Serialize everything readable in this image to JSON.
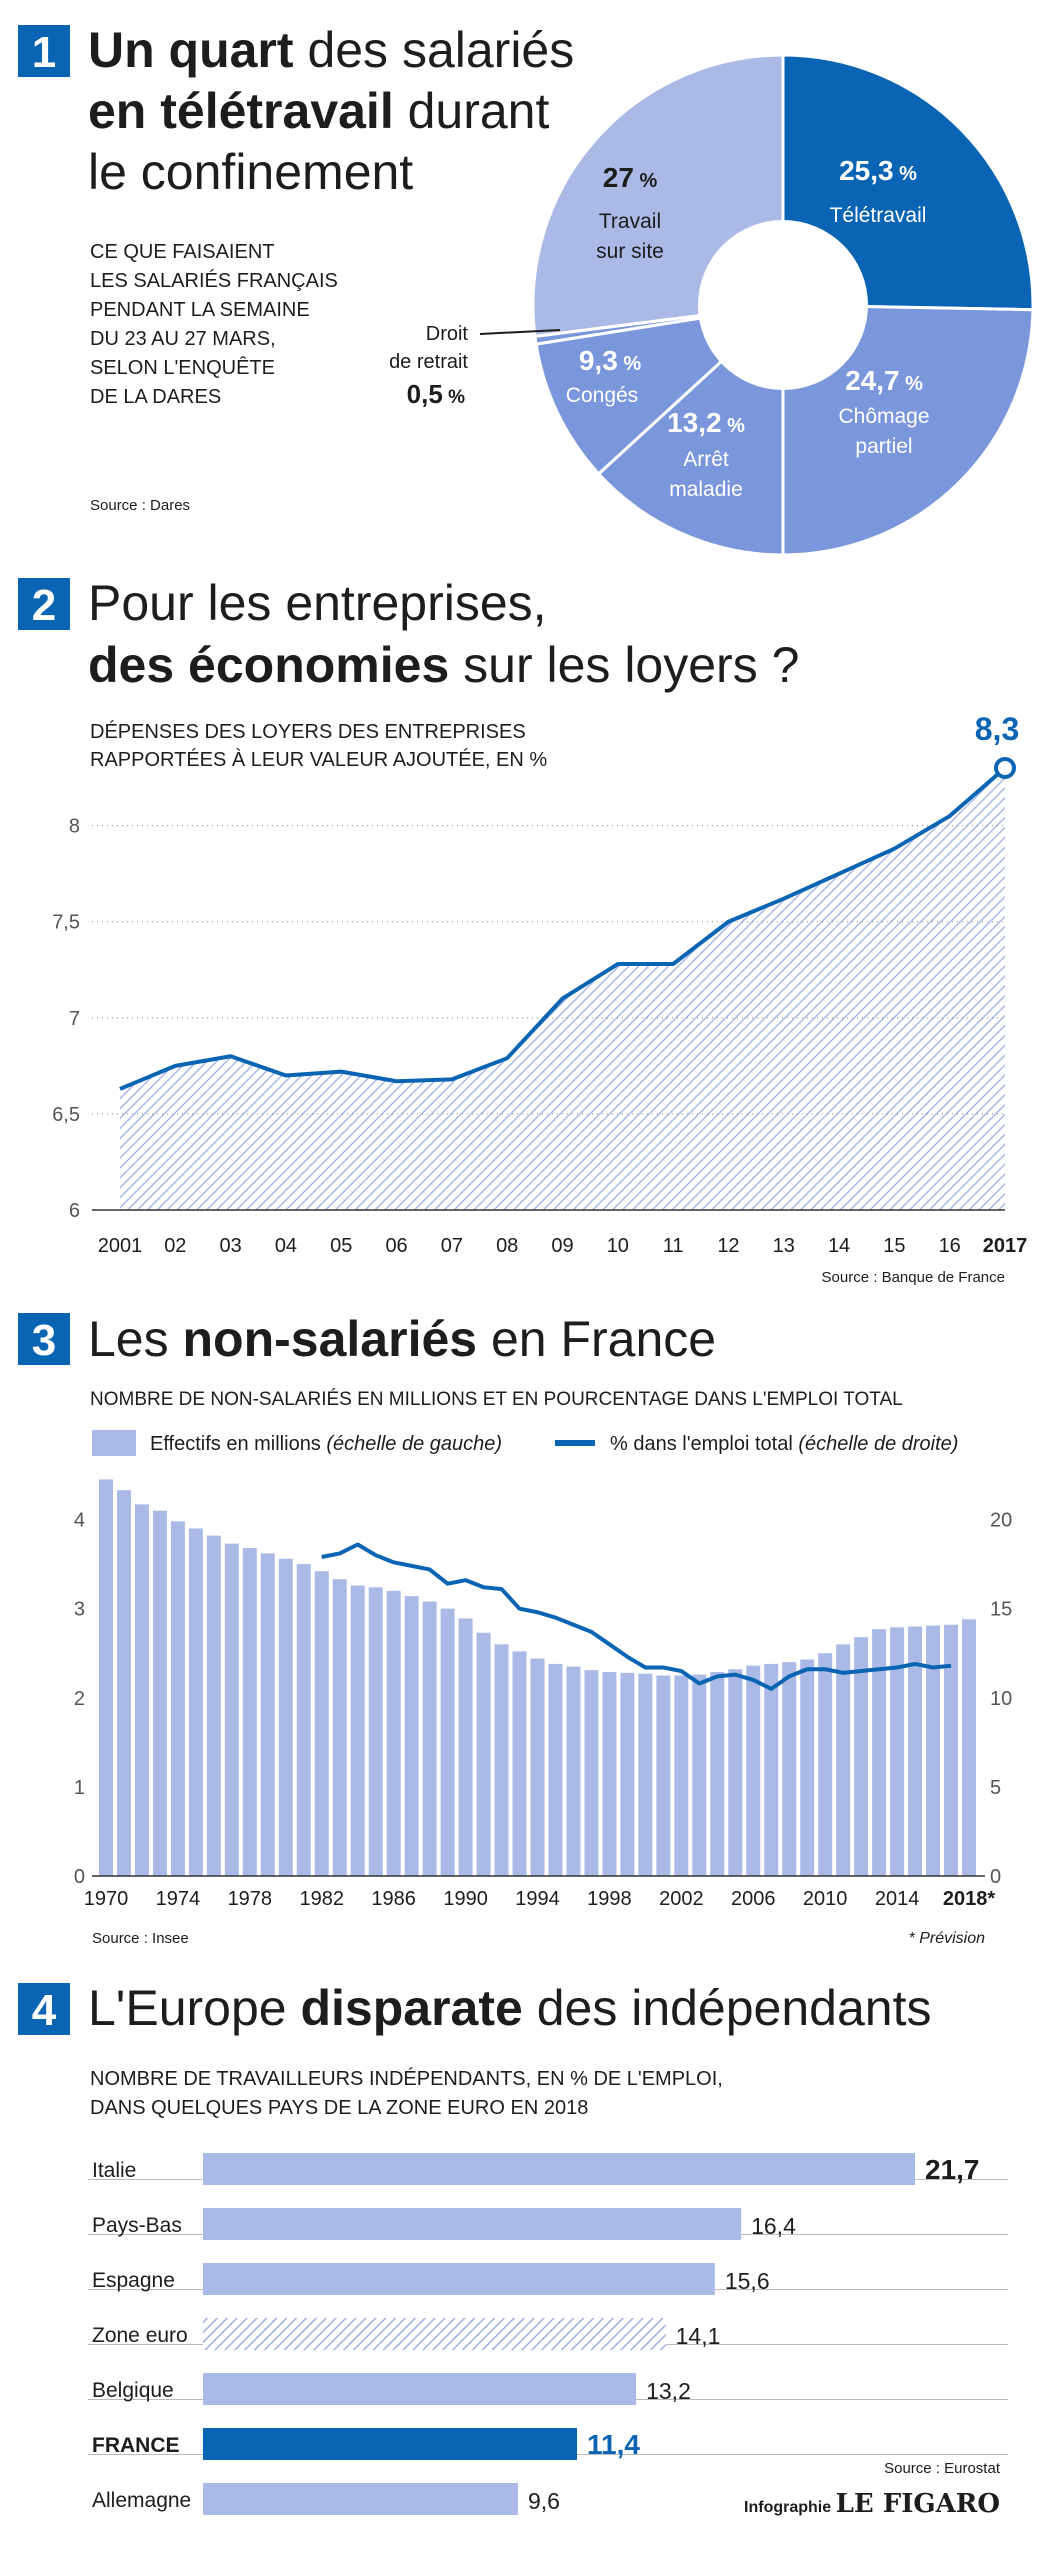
{
  "colors": {
    "dark_blue": "#0a64b4",
    "light_blue": "#aab9e6",
    "mid_blue": "#7b97dc",
    "pie_dark": "#0a64b4",
    "pie_mid": "#7b97dc",
    "pie_light": "#aab9e6",
    "text": "#1d1d1b",
    "axis": "#444444"
  },
  "sections": [
    {
      "number": "1",
      "title_bold_1": "Un quart",
      "title_rest_1": " des salariés",
      "title_bold_2": "en télétravail",
      "title_rest_2": " durant",
      "title_line_3": "le confinement",
      "subtitle": [
        "CE QUE FAISAIENT",
        "LES SALARIÉS FRANÇAIS",
        "PENDANT LA SEMAINE",
        "DU 23 AU 27 MARS,",
        "SELON L'ENQUÊTE",
        "DE LA DARES"
      ],
      "source": "Source : Dares"
    },
    {
      "number": "2",
      "title_line_1": "Pour les entreprises,",
      "title_bold_2": "des économies",
      "title_rest_2": " sur les loyers ?",
      "subtitle": [
        "DÉPENSES DES LOYERS DES ENTREPRISES",
        "RAPPORTÉES À LEUR VALEUR AJOUTÉE, EN %"
      ],
      "source": "Source : Banque de France"
    },
    {
      "number": "3",
      "title_rest_1": "Les ",
      "title_bold_1": "non-salariés",
      "title_rest_2": " en France",
      "subtitle": "NOMBRE DE NON-SALARIÉS EN MILLIONS ET EN POURCENTAGE DANS L'EMPLOI TOTAL",
      "legend_bar": "Effectifs en millions",
      "legend_bar_note": "(échelle de gauche)",
      "legend_line": "% dans l'emploi total",
      "legend_line_note": "(échelle de droite)",
      "source": "Source : Insee",
      "footnote": "* Prévision"
    },
    {
      "number": "4",
      "title_rest_1": "L'Europe ",
      "title_bold_1": "disparate",
      "title_rest_2": " des indépendants",
      "subtitle": [
        "NOMBRE DE TRAVAILLEURS INDÉPENDANTS, EN % DE L'EMPLOI,",
        "DANS QUELQUES PAYS DE LA ZONE EURO EN 2018"
      ],
      "source": "Source : Eurostat",
      "credit_prefix": "Infographie",
      "credit_brand": "LE FIGARO"
    }
  ],
  "chart_data": [
    {
      "type": "pie",
      "id": "pie",
      "slices": [
        {
          "label": "Télétravail",
          "value": 25.3,
          "value_text": "25,3",
          "color": "dark"
        },
        {
          "label": "Chômage partiel",
          "value": 24.7,
          "value_text": "24,7",
          "color": "mid"
        },
        {
          "label": "Arrêt maladie",
          "value": 13.2,
          "value_text": "13,2",
          "color": "mid"
        },
        {
          "label": "Congés",
          "value": 9.3,
          "value_text": "9,3",
          "color": "mid"
        },
        {
          "label": "Droit de retrait",
          "value": 0.5,
          "value_text": "0,5",
          "color": "mid"
        },
        {
          "label": "Travail sur site",
          "value": 27,
          "value_text": "27",
          "color": "light"
        }
      ]
    },
    {
      "type": "area",
      "id": "loyers",
      "x": [
        2001,
        2002,
        2003,
        2004,
        2005,
        2006,
        2007,
        2008,
        2009,
        2010,
        2011,
        2012,
        2013,
        2014,
        2015,
        2016,
        2017
      ],
      "x_labels": [
        "2001",
        "02",
        "03",
        "04",
        "05",
        "06",
        "07",
        "08",
        "09",
        "10",
        "11",
        "12",
        "13",
        "14",
        "15",
        "16",
        "2017"
      ],
      "values": [
        6.63,
        6.75,
        6.8,
        6.7,
        6.72,
        6.67,
        6.68,
        6.79,
        7.1,
        7.28,
        7.28,
        7.5,
        7.62,
        7.75,
        7.88,
        8.05,
        8.3
      ],
      "last_label": "8,3",
      "ylim": [
        6,
        8.3
      ],
      "yticks": [
        6,
        6.5,
        7,
        7.5,
        8
      ],
      "ytick_labels": [
        "6",
        "6,5",
        "7",
        "7,5",
        "8"
      ]
    },
    {
      "type": "bar",
      "id": "nonsal",
      "x_start": 1970,
      "bars": [
        4.45,
        4.33,
        4.17,
        4.1,
        3.98,
        3.9,
        3.82,
        3.73,
        3.68,
        3.62,
        3.56,
        3.5,
        3.42,
        3.33,
        3.26,
        3.24,
        3.2,
        3.14,
        3.08,
        3.0,
        2.89,
        2.73,
        2.6,
        2.52,
        2.44,
        2.38,
        2.35,
        2.31,
        2.29,
        2.28,
        2.27,
        2.25,
        2.25,
        2.26,
        2.29,
        2.32,
        2.36,
        2.38,
        2.4,
        2.43,
        2.5,
        2.6,
        2.68,
        2.77,
        2.79,
        2.8,
        2.81,
        2.82,
        2.88
      ],
      "line_start": 1982,
      "line": [
        17.9,
        18.1,
        18.6,
        18.0,
        17.6,
        17.4,
        17.2,
        16.4,
        16.6,
        16.2,
        16.1,
        15.0,
        14.8,
        14.5,
        14.1,
        13.7,
        13.0,
        12.3,
        11.7,
        11.7,
        11.5,
        10.8,
        11.2,
        11.3,
        11.0,
        10.5,
        11.2,
        11.6,
        11.6,
        11.4,
        11.5,
        11.6,
        11.7,
        11.9,
        11.7,
        11.8
      ],
      "x_labels": [
        "1970",
        "1974",
        "1978",
        "1982",
        "1986",
        "1990",
        "1994",
        "1998",
        "2002",
        "2006",
        "2010",
        "2014",
        "2018*"
      ],
      "ylim_left": [
        0,
        4.5
      ],
      "yticks_left": [
        0,
        1,
        2,
        3,
        4
      ],
      "ylim_right": [
        0,
        22.5
      ],
      "yticks_right": [
        0,
        5,
        10,
        15,
        20
      ]
    },
    {
      "type": "bar",
      "id": "europe",
      "orientation": "horizontal",
      "categories": [
        "Italie",
        "Pays-Bas",
        "Espagne",
        "Zone euro",
        "Belgique",
        "FRANCE",
        "Allemagne"
      ],
      "values": [
        21.7,
        16.4,
        15.6,
        14.1,
        13.2,
        11.4,
        9.6
      ],
      "value_labels": [
        "21,7",
        "16,4",
        "15,6",
        "14,1",
        "13,2",
        "11,4",
        "9,6"
      ],
      "styles": [
        "light",
        "light",
        "light",
        "hatched",
        "light",
        "dark",
        "light"
      ]
    }
  ]
}
